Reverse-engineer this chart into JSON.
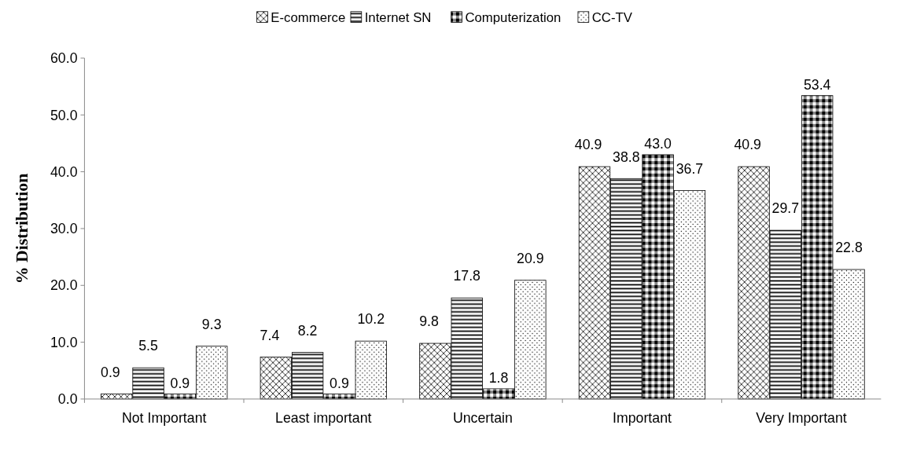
{
  "chart_data": {
    "type": "bar",
    "ylabel": "% Distribution",
    "categories": [
      "Not Important",
      "Least important",
      "Uncertain",
      "Important",
      "Very Important"
    ],
    "series": [
      {
        "name": "E-commerce",
        "color": "#000000",
        "values": [
          0.9,
          7.4,
          9.8,
          40.9,
          40.9
        ],
        "value_labels": [
          "0.9",
          "7.4",
          "9.8",
          "40.9",
          "40.9"
        ]
      },
      {
        "name": "Internet SN",
        "color": "#000000",
        "values": [
          5.5,
          8.2,
          17.8,
          38.8,
          29.7
        ],
        "value_labels": [
          "5.5",
          "8.2",
          "17.8",
          "38.8",
          "29.7"
        ]
      },
      {
        "name": "Computerization",
        "color": "#000000",
        "values": [
          0.9,
          0.9,
          1.8,
          43.0,
          53.4
        ],
        "value_labels": [
          "0.9",
          "0.9",
          "1.8",
          "43.0",
          "53.4"
        ]
      },
      {
        "name": "CC-TV",
        "color": "#000000",
        "values": [
          9.3,
          10.2,
          20.9,
          36.7,
          22.8
        ],
        "value_labels": [
          "9.3",
          "10.2",
          "20.9",
          "36.7",
          "22.8"
        ]
      }
    ],
    "ylim": [
      0,
      60
    ],
    "yticks": [
      {
        "value": 0,
        "label": "0.0"
      },
      {
        "value": 10,
        "label": "10.0"
      },
      {
        "value": 20,
        "label": "20.0"
      },
      {
        "value": 30,
        "label": "30.0"
      },
      {
        "value": 40,
        "label": "40.0"
      },
      {
        "value": 50,
        "label": "50.0"
      },
      {
        "value": 60,
        "label": "60.0"
      }
    ],
    "grid": false,
    "legend": "top"
  }
}
